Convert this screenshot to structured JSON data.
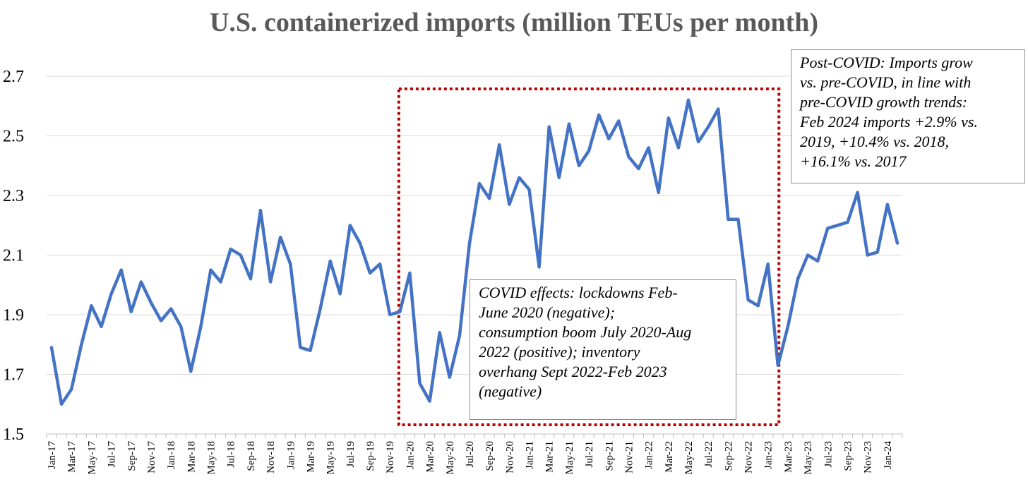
{
  "colors": {
    "line": "#4472c4",
    "grid": "#d9d9d9",
    "box": "#c00000",
    "title": "#595959"
  },
  "annotations": {
    "covid": "COVID effects: lockdowns Feb-\nJune 2020 (negative);\nconsumption boom July 2020-Aug\n2022 (positive); inventory\noverhang Sept 2022-Feb 2023\n(negative)",
    "post_covid": "Post-COVID: Imports grow\nvs. pre-COVID, in line with\npre-COVID growth trends:\nFeb 2024 imports +2.9% vs.\n2019, +10.4% vs. 2018,\n+16.1% vs. 2017"
  },
  "chart_data": {
    "type": "line",
    "title": "U.S. containerized imports (million TEUs per month)",
    "xlabel": "",
    "ylabel": "",
    "ylim": [
      1.5,
      2.7
    ],
    "yticks": [
      "1.5",
      "1.7",
      "1.9",
      "2.1",
      "2.3",
      "2.5",
      "2.7"
    ],
    "grid": true,
    "x": [
      "Jan-17",
      "Feb-17",
      "Mar-17",
      "Apr-17",
      "May-17",
      "Jun-17",
      "Jul-17",
      "Aug-17",
      "Sep-17",
      "Oct-17",
      "Nov-17",
      "Dec-17",
      "Jan-18",
      "Feb-18",
      "Mar-18",
      "Apr-18",
      "May-18",
      "Jun-18",
      "Jul-18",
      "Aug-18",
      "Sep-18",
      "Oct-18",
      "Nov-18",
      "Dec-18",
      "Jan-19",
      "Feb-19",
      "Mar-19",
      "Apr-19",
      "May-19",
      "Jun-19",
      "Jul-19",
      "Aug-19",
      "Sep-19",
      "Oct-19",
      "Nov-19",
      "Dec-19",
      "Jan-20",
      "Feb-20",
      "Mar-20",
      "Apr-20",
      "May-20",
      "Jun-20",
      "Jul-20",
      "Aug-20",
      "Sep-20",
      "Oct-20",
      "Nov-20",
      "Dec-20",
      "Jan-21",
      "Feb-21",
      "Mar-21",
      "Apr-21",
      "May-21",
      "Jun-21",
      "Jul-21",
      "Aug-21",
      "Sep-21",
      "Oct-21",
      "Nov-21",
      "Dec-21",
      "Jan-22",
      "Feb-22",
      "Mar-22",
      "Apr-22",
      "May-22",
      "Jun-22",
      "Jul-22",
      "Aug-22",
      "Sep-22",
      "Oct-22",
      "Nov-22",
      "Dec-22",
      "Jan-23",
      "Feb-23",
      "Mar-23",
      "Apr-23",
      "May-23",
      "Jun-23",
      "Jul-23",
      "Aug-23",
      "Sep-23",
      "Oct-23",
      "Nov-23",
      "Dec-23",
      "Jan-24",
      "Feb-24"
    ],
    "xtick_labels": [
      "Jan-17",
      "Mar-17",
      "May-17",
      "Jul-17",
      "Sep-17",
      "Nov-17",
      "Jan-18",
      "Mar-18",
      "May-18",
      "Jul-18",
      "Sep-18",
      "Nov-18",
      "Jan-19",
      "Mar-19",
      "May-19",
      "Jul-19",
      "Sep-19",
      "Nov-19",
      "Jan-20",
      "Mar-20",
      "May-20",
      "Jul-20",
      "Sep-20",
      "Nov-20",
      "Jan-21",
      "Mar-21",
      "May-21",
      "Jul-21",
      "Sep-21",
      "Nov-21",
      "Jan-22",
      "Mar-22",
      "May-22",
      "Jul-22",
      "Sep-22",
      "Nov-22",
      "Jan-23",
      "Mar-23",
      "May-23",
      "Jul-23",
      "Sep-23",
      "Nov-23",
      "Jan-24"
    ],
    "series": [
      {
        "values": [
          1.79,
          1.6,
          1.65,
          1.8,
          1.93,
          1.86,
          1.97,
          2.05,
          1.91,
          2.01,
          1.94,
          1.88,
          1.92,
          1.86,
          1.71,
          1.86,
          2.05,
          2.01,
          2.12,
          2.1,
          2.02,
          2.25,
          2.01,
          2.16,
          2.07,
          1.79,
          1.78,
          1.92,
          2.08,
          1.97,
          2.2,
          2.14,
          2.04,
          2.07,
          1.9,
          1.91,
          2.04,
          1.67,
          1.61,
          1.84,
          1.69,
          1.83,
          2.14,
          2.34,
          2.29,
          2.47,
          2.27,
          2.36,
          2.32,
          2.06,
          2.53,
          2.36,
          2.54,
          2.4,
          2.45,
          2.57,
          2.49,
          2.55,
          2.43,
          2.39,
          2.46,
          2.31,
          2.56,
          2.46,
          2.62,
          2.48,
          2.53,
          2.59,
          2.22,
          2.22,
          1.95,
          1.93,
          2.07,
          1.73,
          1.86,
          2.02,
          2.1,
          2.08,
          2.19,
          2.2,
          2.21,
          2.31,
          2.1,
          2.11,
          2.27,
          2.14
        ]
      }
    ],
    "highlight_box": {
      "from": "Feb-20",
      "to": "Feb-23"
    }
  }
}
